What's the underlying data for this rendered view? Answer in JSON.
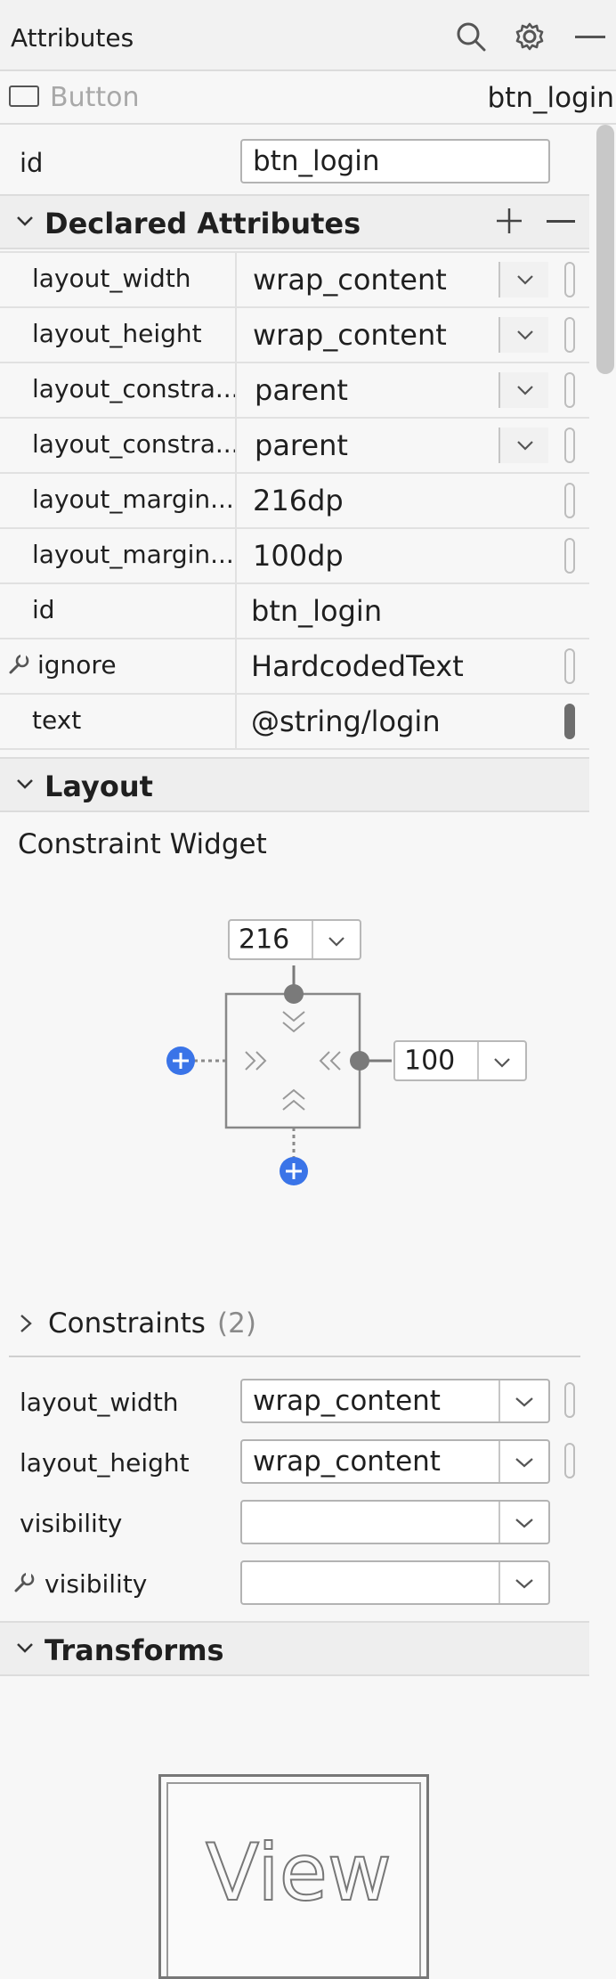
{
  "header": {
    "title": "Attributes",
    "search_icon": "search-icon",
    "settings_icon": "gear-icon",
    "minimize_icon": "minimize-icon"
  },
  "component": {
    "type": "Button",
    "id": "btn_login"
  },
  "id_field": {
    "label": "id",
    "value": "btn_login"
  },
  "declared": {
    "title": "Declared Attributes",
    "rows": [
      {
        "name": "layout_width",
        "value": "wrap_content"
      },
      {
        "name": "layout_height",
        "value": "wrap_content"
      },
      {
        "name": "layout_constra...",
        "value": "parent"
      },
      {
        "name": "layout_constra...",
        "value": "parent"
      },
      {
        "name": "layout_margin...",
        "value": "216dp"
      },
      {
        "name": "layout_margin...",
        "value": "100dp"
      },
      {
        "name": "id",
        "value": "btn_login"
      },
      {
        "name": "ignore",
        "value": "HardcodedText"
      },
      {
        "name": "text",
        "value": "@string/login"
      }
    ]
  },
  "layout": {
    "title": "Layout",
    "widget_title": "Constraint Widget",
    "top_margin": "216",
    "right_margin": "100",
    "constraints_label": "Constraints",
    "constraints_count": "(2)",
    "rows": [
      {
        "name": "layout_width",
        "value": "wrap_content"
      },
      {
        "name": "layout_height",
        "value": "wrap_content"
      },
      {
        "name": "visibility",
        "value": ""
      },
      {
        "name": "visibility",
        "value": ""
      }
    ]
  },
  "transforms": {
    "title": "Transforms",
    "preview_label": "View"
  },
  "colors": {
    "accent": "#3a74e8",
    "handle": "#7a7a7a"
  }
}
